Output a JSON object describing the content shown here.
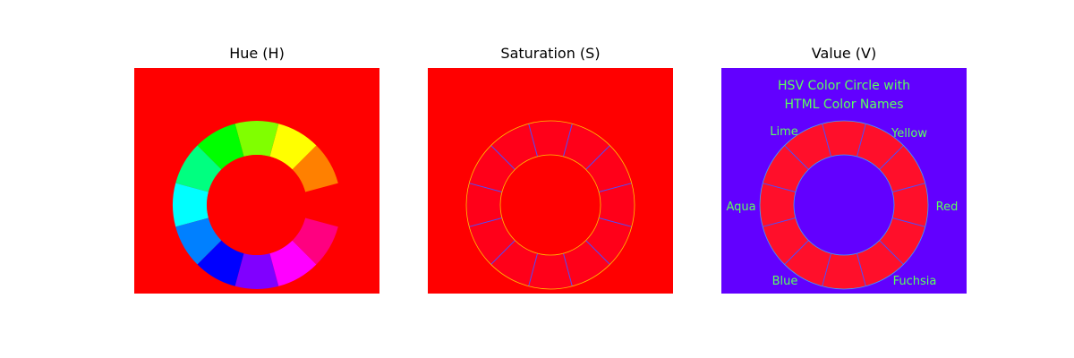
{
  "panels": {
    "hue": {
      "title": "Hue (H)"
    },
    "saturation": {
      "title": "Saturation (S)"
    },
    "value": {
      "title": "Value (V)"
    }
  },
  "image_text": {
    "title_line1": "HSV Color Circle with",
    "title_line2": "HTML Color Names",
    "labels": {
      "lime": "Lime",
      "yellow": "Yellow",
      "aqua": "Aqua",
      "red": "Red",
      "blue": "Blue",
      "fuchsia": "Fuchsia"
    }
  },
  "colors": {
    "background_red": "#ff0000",
    "value_background": "#6200ff",
    "saturation_ring": "#ff0019",
    "value_ring": "#ff0f2a",
    "label_green": "#5cff5c",
    "divider_blue": "#4d4dff",
    "hue_segments": [
      "#ff0000",
      "#ff8000",
      "#ffff00",
      "#80ff00",
      "#00ff00",
      "#00ff80",
      "#00ffff",
      "#0080ff",
      "#0000ff",
      "#8000ff",
      "#ff00ff",
      "#ff0080"
    ]
  }
}
